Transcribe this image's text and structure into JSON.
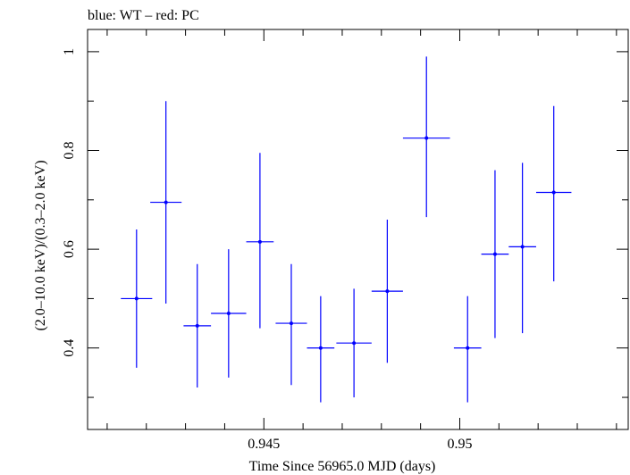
{
  "chart_data": {
    "type": "scatter",
    "title": "blue: WT – red: PC",
    "xlabel": "Time Since 56965.0 MJD (days)",
    "ylabel": "(2.0–10.0 keV)/(0.3–2.0 keV)",
    "xlim": [
      0.9405,
      0.9543
    ],
    "ylim": [
      0.235,
      1.045
    ],
    "xticks": [
      0.945,
      0.95
    ],
    "xtick_labels": [
      "0.945",
      "0.95"
    ],
    "yticks": [
      0.4,
      0.6,
      0.8,
      1.0
    ],
    "ytick_labels": [
      "0.4",
      "0.6",
      "0.8",
      "1"
    ],
    "grid": false,
    "series": [
      {
        "color": "#0000ff",
        "points": [
          {
            "x": 0.94175,
            "y": 0.5,
            "xerr": 0.0004,
            "ylo": 0.36,
            "yhi": 0.64
          },
          {
            "x": 0.9425,
            "y": 0.695,
            "xerr": 0.0004,
            "ylo": 0.49,
            "yhi": 0.9
          },
          {
            "x": 0.9433,
            "y": 0.445,
            "xerr": 0.00035,
            "ylo": 0.32,
            "yhi": 0.57
          },
          {
            "x": 0.9441,
            "y": 0.47,
            "xerr": 0.00045,
            "ylo": 0.34,
            "yhi": 0.6
          },
          {
            "x": 0.9449,
            "y": 0.615,
            "xerr": 0.00035,
            "ylo": 0.44,
            "yhi": 0.795
          },
          {
            "x": 0.9457,
            "y": 0.45,
            "xerr": 0.0004,
            "ylo": 0.325,
            "yhi": 0.57
          },
          {
            "x": 0.94645,
            "y": 0.4,
            "xerr": 0.00035,
            "ylo": 0.29,
            "yhi": 0.505
          },
          {
            "x": 0.9473,
            "y": 0.41,
            "xerr": 0.00045,
            "ylo": 0.3,
            "yhi": 0.52
          },
          {
            "x": 0.94815,
            "y": 0.515,
            "xerr": 0.0004,
            "ylo": 0.37,
            "yhi": 0.66
          },
          {
            "x": 0.94915,
            "y": 0.825,
            "xerr": 0.0006,
            "ylo": 0.665,
            "yhi": 0.99
          },
          {
            "x": 0.9502,
            "y": 0.4,
            "xerr": 0.00035,
            "ylo": 0.29,
            "yhi": 0.505
          },
          {
            "x": 0.9509,
            "y": 0.59,
            "xerr": 0.00035,
            "ylo": 0.42,
            "yhi": 0.76
          },
          {
            "x": 0.9516,
            "y": 0.605,
            "xerr": 0.00035,
            "ylo": 0.43,
            "yhi": 0.775
          },
          {
            "x": 0.9524,
            "y": 0.715,
            "xerr": 0.00045,
            "ylo": 0.535,
            "yhi": 0.89
          }
        ]
      }
    ]
  }
}
